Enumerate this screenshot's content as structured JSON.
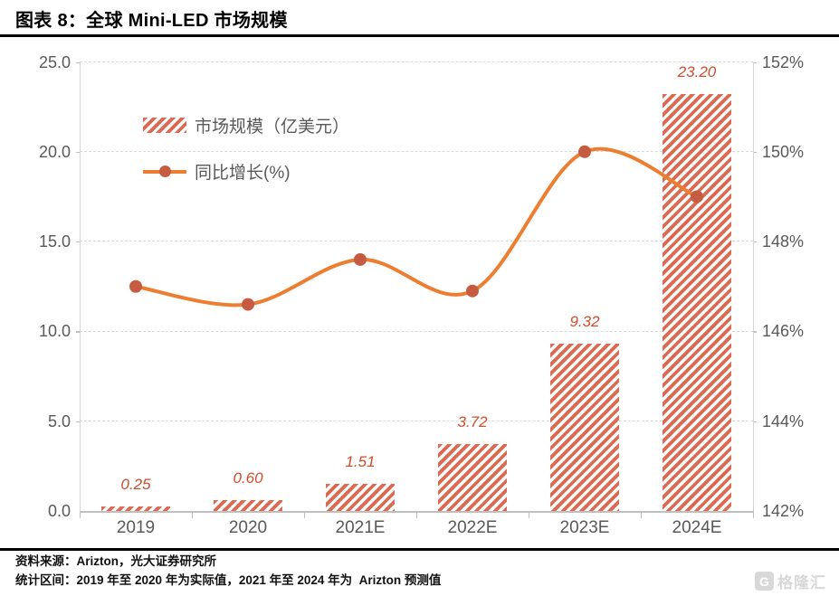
{
  "header": {
    "title": "图表 8：全球 Mini-LED 市场规模"
  },
  "chart_data": {
    "type": "bar",
    "title": "全球 Mini-LED 市场规模",
    "categories": [
      "2019",
      "2020",
      "2021E",
      "2022E",
      "2023E",
      "2024E"
    ],
    "series": [
      {
        "name": "市场规模（亿美元）",
        "type": "bar",
        "axis": "left",
        "values": [
          0.25,
          0.6,
          1.51,
          3.72,
          9.32,
          23.2
        ],
        "labels": [
          "0.25",
          "0.60",
          "1.51",
          "3.72",
          "9.32",
          "23.20"
        ]
      },
      {
        "name": "同比增长(%)",
        "type": "line",
        "axis": "right",
        "values": [
          147.0,
          146.6,
          147.6,
          146.9,
          150.0,
          149.0
        ]
      }
    ],
    "left_axis": {
      "ticks": [
        "0.0",
        "5.0",
        "10.0",
        "15.0",
        "20.0",
        "25.0"
      ],
      "range": [
        0,
        25
      ]
    },
    "right_axis": {
      "ticks": [
        "142%",
        "144%",
        "146%",
        "148%",
        "150%",
        "152%"
      ],
      "range": [
        142,
        152
      ]
    },
    "legend": [
      {
        "label": "市场规模（亿美元）",
        "swatch": "hatched-bar"
      },
      {
        "label": "同比增长(%)",
        "swatch": "line-marker"
      }
    ],
    "grid": "dashed-horizontal",
    "legend_position": "inside-top-left",
    "colors": {
      "bar_stripe": "#DC6950",
      "line": "#ED7D31",
      "marker": "#C55B40",
      "bar_label": "#CE4D2D",
      "axis_text": "#595959",
      "grid": "#D9D9D9"
    }
  },
  "footer": {
    "source": "资料来源：Arizton，光大证券研究所",
    "note": "统计区间：2019 年至 2020 年为实际值，2021 年至 2024 年为  Arizton 预测值",
    "logo_text": "格隆汇",
    "logo_icon": "G"
  }
}
